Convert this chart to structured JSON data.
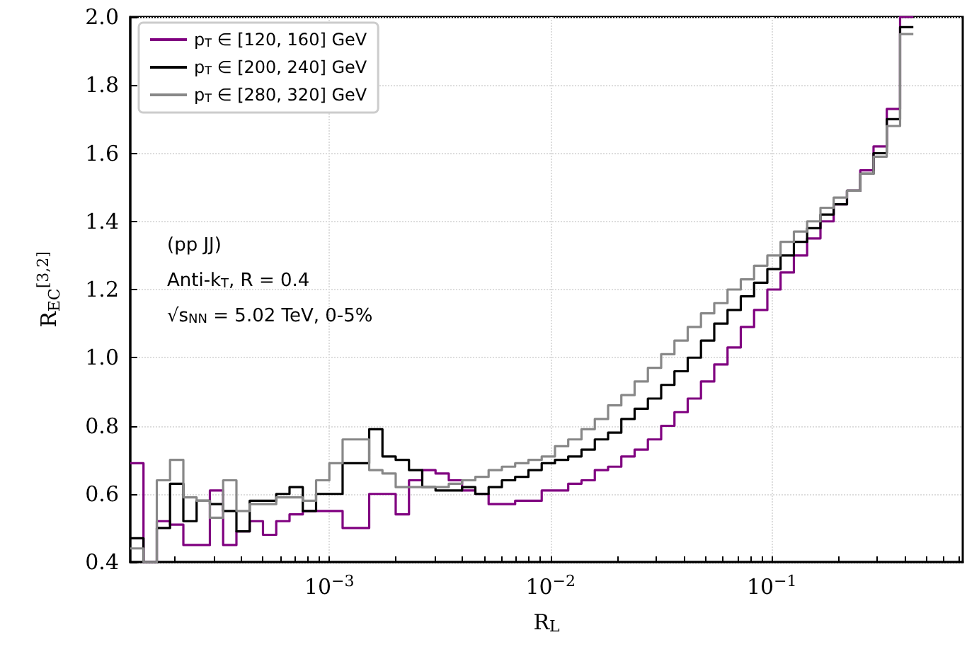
{
  "chart_data": {
    "type": "histogram",
    "xlabel": "R$_{L}$",
    "ylabel": "R$_{EC}$$^{[3,2]}$",
    "bins": [
      0.0001259,
      0.0001445,
      0.000166,
      0.0001905,
      0.0002188,
      0.0002512,
      0.0002884,
      0.0003311,
      0.0003802,
      0.0004365,
      0.0005012,
      0.0005754,
      0.0006607,
      0.0007586,
      0.000871,
      0.001,
      0.001148,
      0.001318,
      0.001514,
      0.001738,
      0.001995,
      0.002291,
      0.00263,
      0.00302,
      0.003467,
      0.003981,
      0.004571,
      0.005248,
      0.006026,
      0.006918,
      0.007943,
      0.00912,
      0.01047,
      0.01202,
      0.0138,
      0.01585,
      0.0182,
      0.02089,
      0.02399,
      0.02754,
      0.03162,
      0.03631,
      0.04169,
      0.04786,
      0.05495,
      0.0631,
      0.07244,
      0.08318,
      0.0955,
      0.1096,
      0.1259,
      0.1445,
      0.166,
      0.1905,
      0.2188,
      0.2512,
      0.2884,
      0.3311,
      0.3802,
      0.4365
    ],
    "series": [
      {
        "name": "p$_{T}$ ∈ [120, 160] GeV",
        "color": "#800080",
        "values": [
          0.69,
          null,
          0.52,
          0.51,
          0.45,
          0.45,
          0.61,
          0.45,
          0.49,
          0.52,
          0.48,
          0.52,
          0.54,
          0.55,
          0.55,
          0.55,
          0.5,
          0.5,
          0.6,
          0.6,
          0.54,
          0.64,
          0.67,
          0.66,
          0.64,
          0.61,
          0.6,
          0.57,
          0.57,
          0.58,
          0.58,
          0.61,
          0.61,
          0.63,
          0.64,
          0.67,
          0.68,
          0.71,
          0.73,
          0.76,
          0.8,
          0.84,
          0.88,
          0.93,
          0.98,
          1.03,
          1.09,
          1.14,
          1.2,
          1.25,
          1.3,
          1.35,
          1.4,
          1.45,
          1.49,
          1.55,
          1.62,
          1.73,
          2.0
        ]
      },
      {
        "name": "p$_{T}$ ∈ [200, 240] GeV",
        "color": "#000000",
        "values": [
          0.47,
          null,
          0.5,
          0.63,
          0.52,
          0.58,
          0.57,
          0.55,
          0.49,
          0.58,
          0.58,
          0.6,
          0.62,
          0.55,
          0.6,
          0.6,
          0.69,
          0.69,
          0.79,
          0.71,
          0.7,
          0.67,
          0.62,
          0.61,
          0.61,
          0.62,
          0.6,
          0.62,
          0.64,
          0.65,
          0.67,
          0.69,
          0.7,
          0.71,
          0.73,
          0.76,
          0.78,
          0.82,
          0.85,
          0.88,
          0.92,
          0.96,
          1.0,
          1.05,
          1.1,
          1.14,
          1.18,
          1.22,
          1.26,
          1.3,
          1.34,
          1.38,
          1.42,
          1.45,
          1.49,
          1.54,
          1.6,
          1.7,
          1.97
        ]
      },
      {
        "name": "p$_{T}$ ∈ [280, 320] GeV",
        "color": "#888888",
        "values": [
          0.44,
          null,
          0.64,
          0.7,
          0.59,
          0.58,
          0.53,
          0.64,
          0.55,
          0.57,
          0.57,
          0.59,
          0.59,
          0.58,
          0.64,
          0.69,
          0.76,
          0.76,
          0.67,
          0.66,
          0.62,
          0.62,
          0.62,
          0.62,
          0.63,
          0.64,
          0.65,
          0.67,
          0.68,
          0.69,
          0.7,
          0.71,
          0.74,
          0.76,
          0.79,
          0.82,
          0.86,
          0.89,
          0.93,
          0.97,
          1.01,
          1.05,
          1.09,
          1.13,
          1.16,
          1.2,
          1.23,
          1.27,
          1.3,
          1.34,
          1.37,
          1.4,
          1.44,
          1.47,
          1.49,
          1.54,
          1.59,
          1.68,
          1.95
        ]
      }
    ],
    "xlim": [
      0.0001259,
      0.73
    ],
    "xticks": [
      {
        "value": 0.0002,
        "label": null
      },
      {
        "value": 0.0003,
        "label": null
      },
      {
        "value": 0.0004,
        "label": null
      },
      {
        "value": 0.0005,
        "label": null
      },
      {
        "value": 0.0006,
        "label": null
      },
      {
        "value": 0.0007,
        "label": null
      },
      {
        "value": 0.0008,
        "label": null
      },
      {
        "value": 0.0009,
        "label": null
      },
      {
        "value": 0.001,
        "label": "10$^{−3}$"
      },
      {
        "value": 0.002,
        "label": null
      },
      {
        "value": 0.003,
        "label": null
      },
      {
        "value": 0.004,
        "label": null
      },
      {
        "value": 0.005,
        "label": null
      },
      {
        "value": 0.006,
        "label": null
      },
      {
        "value": 0.007,
        "label": null
      },
      {
        "value": 0.008,
        "label": null
      },
      {
        "value": 0.009,
        "label": null
      },
      {
        "value": 0.01,
        "label": "10$^{−2}$"
      },
      {
        "value": 0.02,
        "label": null
      },
      {
        "value": 0.03,
        "label": null
      },
      {
        "value": 0.04,
        "label": null
      },
      {
        "value": 0.05,
        "label": null
      },
      {
        "value": 0.06,
        "label": null
      },
      {
        "value": 0.07,
        "label": null
      },
      {
        "value": 0.08,
        "label": null
      },
      {
        "value": 0.09,
        "label": null
      },
      {
        "value": 0.1,
        "label": "10$^{−1}$"
      },
      {
        "value": 0.2,
        "label": null
      },
      {
        "value": 0.3,
        "label": null
      },
      {
        "value": 0.4,
        "label": null
      },
      {
        "value": 0.5,
        "label": null
      },
      {
        "value": 0.6,
        "label": null
      },
      {
        "value": 0.7,
        "label": null
      }
    ],
    "ylim": [
      0.4,
      2.0
    ],
    "yticks": [
      0.4,
      0.6,
      0.8,
      {
        "value": 1,
        "label": "1.0"
      },
      1.2,
      1.4,
      1.6,
      1.8,
      {
        "value": 2,
        "label": "2.0"
      }
    ],
    "log": "x",
    "grid": true,
    "legend": "top left",
    "annotations": [
      "(pp JJ)",
      "Anti-k$_{T}$, R = 0.4",
      "√s$_{NN}$ = 5.02 TeV, 0-5%"
    ]
  }
}
